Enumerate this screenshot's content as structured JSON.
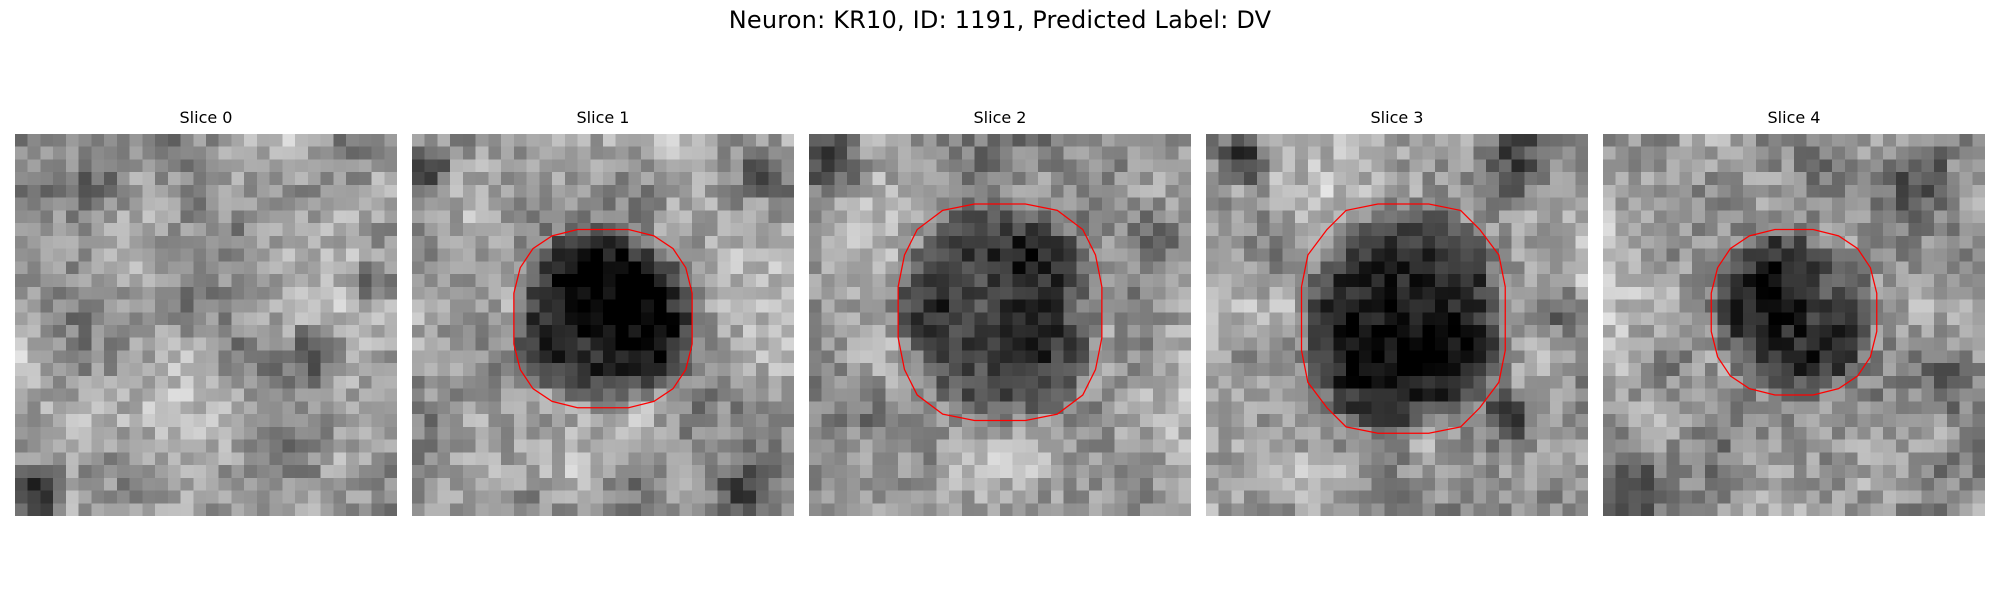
{
  "figure": {
    "title": "Neuron: KR10, ID: 1191, Predicted Label: DV"
  },
  "panels": [
    {
      "title": "Slice 0",
      "has_contour": false,
      "seed": 11,
      "blob_strength": 0.0
    },
    {
      "title": "Slice 1",
      "has_contour": true,
      "seed": 23,
      "blob_strength": 0.55
    },
    {
      "title": "Slice 2",
      "has_contour": true,
      "seed": 37,
      "blob_strength": 0.45
    },
    {
      "title": "Slice 3",
      "has_contour": true,
      "seed": 51,
      "blob_strength": 0.6
    },
    {
      "title": "Slice 4",
      "has_contour": true,
      "seed": 67,
      "blob_strength": 0.4
    }
  ],
  "colors": {
    "contour": "#ff0000",
    "colormap": "gray"
  }
}
